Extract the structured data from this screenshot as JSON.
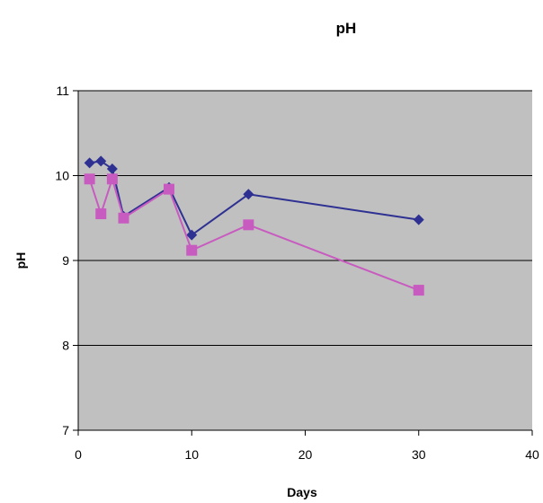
{
  "chart_data": {
    "type": "line",
    "title": "pH",
    "xlabel": "Days",
    "ylabel": "pH",
    "xlim": [
      0,
      40
    ],
    "ylim": [
      7,
      11
    ],
    "xticks": [
      0,
      10,
      20,
      30,
      40
    ],
    "yticks": [
      7,
      8,
      9,
      10,
      11
    ],
    "grid": "horizontal",
    "plot_background": "#c0c0c0",
    "series": [
      {
        "color": "#2e3192",
        "marker": "diamond",
        "points": [
          {
            "x": 1,
            "y": 10.15
          },
          {
            "x": 2,
            "y": 10.17
          },
          {
            "x": 3,
            "y": 10.08
          },
          {
            "x": 4,
            "y": 9.52
          },
          {
            "x": 8,
            "y": 9.86
          },
          {
            "x": 10,
            "y": 9.3
          },
          {
            "x": 15,
            "y": 9.78
          },
          {
            "x": 30,
            "y": 9.48
          }
        ]
      },
      {
        "color": "#c85bbf",
        "marker": "square",
        "points": [
          {
            "x": 1,
            "y": 9.96
          },
          {
            "x": 2,
            "y": 9.55
          },
          {
            "x": 3,
            "y": 9.96
          },
          {
            "x": 4,
            "y": 9.5
          },
          {
            "x": 8,
            "y": 9.84
          },
          {
            "x": 10,
            "y": 9.12
          },
          {
            "x": 15,
            "y": 9.42
          },
          {
            "x": 30,
            "y": 8.65
          }
        ]
      }
    ]
  }
}
